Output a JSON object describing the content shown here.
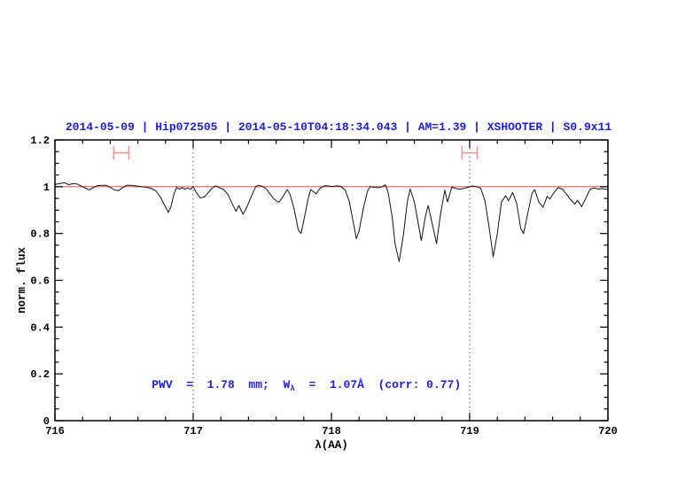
{
  "header": {
    "title": "2014-05-09 | Hip072505 | 2014-05-10T04:18:34.043 | AM=1.39 | XSHOOTER | S0.9x11"
  },
  "annotation": {
    "prefix": "PWV  =  1.78  mm;  W",
    "sub": "λ",
    "suffix": "  =  1.07Å  (corr: 0.77)"
  },
  "colors": {
    "title_blue": "#1c1cdd",
    "annotation_blue": "#1c1cdd",
    "continuum_red": "#e06060",
    "marker_red": "#f09898",
    "spectrum_black": "#141414",
    "frame_black": "#000000",
    "dotted_line": "#444444"
  },
  "chart_data": {
    "type": "line",
    "title": "2014-05-09 | Hip072505 | 2014-05-10T04:18:34.043 | AM=1.39 | XSHOOTER | S0.9x11",
    "xlabel": "λ(AA)",
    "ylabel": "norm. flux",
    "xlim": [
      716,
      720
    ],
    "ylim": [
      0,
      1.2
    ],
    "grid": false,
    "x_ticks": {
      "values": [
        716,
        717,
        718,
        719,
        720
      ],
      "labels": [
        "716",
        "717",
        "718",
        "719",
        "720"
      ],
      "minor_step": 0.2
    },
    "y_ticks": {
      "values": [
        0,
        0.2,
        0.4,
        0.6,
        0.8,
        1,
        1.2
      ],
      "labels": [
        "0",
        "0.2",
        "0.4",
        "0.6",
        "0.8",
        "1",
        "1.2"
      ],
      "minor_step": 0.05
    },
    "vlines": [
      {
        "x": 717,
        "style": "dotted"
      },
      {
        "x": 719,
        "style": "dotted"
      }
    ],
    "continuum": {
      "name": "continuum fit",
      "y": 1.0
    },
    "markers": [
      {
        "type": "h-errorbar",
        "x": 716.48,
        "y": 1.145,
        "halfwidth": 0.055,
        "cap_halfheight": 0.03
      },
      {
        "type": "h-errorbar",
        "x": 719.0,
        "y": 1.145,
        "halfwidth": 0.055,
        "cap_halfheight": 0.03
      }
    ],
    "annotation_text": "PWV = 1.78 mm; Wλ = 1.07Å (corr: 0.77)",
    "series": [
      {
        "name": "observed normalized spectrum",
        "points": [
          [
            716.0,
            1.01
          ],
          [
            716.04,
            1.014
          ],
          [
            716.07,
            1.017
          ],
          [
            716.1,
            1.009
          ],
          [
            716.13,
            1.013
          ],
          [
            716.16,
            1.012
          ],
          [
            716.19,
            1.003
          ],
          [
            716.22,
            0.994
          ],
          [
            716.25,
            0.987
          ],
          [
            716.28,
            0.997
          ],
          [
            716.31,
            1.005
          ],
          [
            716.34,
            1.006
          ],
          [
            716.37,
            1.006
          ],
          [
            716.4,
            0.997
          ],
          [
            716.43,
            0.986
          ],
          [
            716.46,
            0.983
          ],
          [
            716.49,
            0.996
          ],
          [
            716.52,
            1.006
          ],
          [
            716.55,
            1.006
          ],
          [
            716.58,
            1.004
          ],
          [
            716.62,
            1.0
          ],
          [
            716.66,
            0.998
          ],
          [
            716.7,
            0.992
          ],
          [
            716.73,
            0.982
          ],
          [
            716.76,
            0.958
          ],
          [
            716.79,
            0.925
          ],
          [
            716.82,
            0.89
          ],
          [
            716.84,
            0.915
          ],
          [
            716.86,
            0.968
          ],
          [
            716.88,
            0.997
          ],
          [
            716.9,
            0.99
          ],
          [
            716.92,
            0.996
          ],
          [
            716.94,
            0.99
          ],
          [
            716.96,
            0.994
          ],
          [
            716.98,
            0.989
          ],
          [
            717.0,
            1.0
          ],
          [
            717.02,
            0.978
          ],
          [
            717.05,
            0.952
          ],
          [
            717.08,
            0.956
          ],
          [
            717.1,
            0.968
          ],
          [
            717.13,
            0.99
          ],
          [
            717.16,
            1.003
          ],
          [
            717.19,
            0.996
          ],
          [
            717.22,
            0.988
          ],
          [
            717.25,
            0.968
          ],
          [
            717.28,
            0.93
          ],
          [
            717.31,
            0.895
          ],
          [
            717.33,
            0.92
          ],
          [
            717.36,
            0.882
          ],
          [
            717.39,
            0.915
          ],
          [
            717.42,
            0.958
          ],
          [
            717.45,
            0.998
          ],
          [
            717.47,
            1.006
          ],
          [
            717.5,
            1.002
          ],
          [
            717.53,
            0.99
          ],
          [
            717.56,
            0.965
          ],
          [
            717.59,
            0.944
          ],
          [
            717.62,
            0.933
          ],
          [
            717.65,
            0.958
          ],
          [
            717.68,
            0.988
          ],
          [
            717.7,
            0.968
          ],
          [
            717.73,
            0.905
          ],
          [
            717.76,
            0.815
          ],
          [
            717.78,
            0.8
          ],
          [
            717.8,
            0.855
          ],
          [
            717.83,
            0.945
          ],
          [
            717.85,
            0.988
          ],
          [
            717.87,
            0.978
          ],
          [
            717.89,
            0.97
          ],
          [
            717.92,
            0.995
          ],
          [
            717.95,
            1.004
          ],
          [
            717.98,
            1.003
          ],
          [
            718.01,
            1.001
          ],
          [
            718.04,
            1.004
          ],
          [
            718.07,
            1.001
          ],
          [
            718.1,
            0.985
          ],
          [
            718.13,
            0.935
          ],
          [
            718.16,
            0.84
          ],
          [
            718.18,
            0.778
          ],
          [
            718.2,
            0.81
          ],
          [
            718.23,
            0.905
          ],
          [
            718.26,
            0.98
          ],
          [
            718.28,
            1.0
          ],
          [
            718.31,
            0.997
          ],
          [
            718.34,
            0.996
          ],
          [
            718.37,
            1.0
          ],
          [
            718.39,
            1.008
          ],
          [
            718.41,
            0.975
          ],
          [
            718.44,
            0.87
          ],
          [
            718.46,
            0.755
          ],
          [
            718.49,
            0.68
          ],
          [
            718.52,
            0.79
          ],
          [
            718.55,
            0.94
          ],
          [
            718.57,
            0.99
          ],
          [
            718.6,
            0.935
          ],
          [
            718.63,
            0.835
          ],
          [
            718.65,
            0.77
          ],
          [
            718.68,
            0.875
          ],
          [
            718.7,
            0.92
          ],
          [
            718.73,
            0.84
          ],
          [
            718.76,
            0.757
          ],
          [
            718.79,
            0.885
          ],
          [
            718.82,
            0.985
          ],
          [
            718.84,
            0.935
          ],
          [
            718.87,
            0.998
          ],
          [
            718.9,
            0.992
          ],
          [
            718.93,
            0.99
          ],
          [
            718.96,
            0.993
          ],
          [
            718.99,
            0.998
          ],
          [
            719.02,
            1.003
          ],
          [
            719.05,
            1.0
          ],
          [
            719.08,
            0.993
          ],
          [
            719.11,
            0.94
          ],
          [
            719.14,
            0.83
          ],
          [
            719.17,
            0.7
          ],
          [
            719.2,
            0.8
          ],
          [
            719.23,
            0.935
          ],
          [
            719.26,
            0.962
          ],
          [
            719.28,
            0.94
          ],
          [
            719.31,
            0.975
          ],
          [
            719.34,
            0.93
          ],
          [
            719.37,
            0.82
          ],
          [
            719.39,
            0.8
          ],
          [
            719.42,
            0.885
          ],
          [
            719.45,
            0.97
          ],
          [
            719.47,
            0.988
          ],
          [
            719.5,
            0.935
          ],
          [
            719.53,
            0.912
          ],
          [
            719.56,
            0.958
          ],
          [
            719.58,
            0.948
          ],
          [
            719.61,
            0.975
          ],
          [
            719.64,
            0.996
          ],
          [
            719.67,
            0.99
          ],
          [
            719.7,
            0.968
          ],
          [
            719.73,
            0.945
          ],
          [
            719.76,
            0.925
          ],
          [
            719.78,
            0.942
          ],
          [
            719.81,
            0.915
          ],
          [
            719.84,
            0.95
          ],
          [
            719.87,
            0.988
          ],
          [
            719.9,
            0.995
          ],
          [
            719.93,
            0.99
          ],
          [
            719.96,
            0.992
          ],
          [
            720.0,
            0.988
          ]
        ]
      }
    ]
  }
}
